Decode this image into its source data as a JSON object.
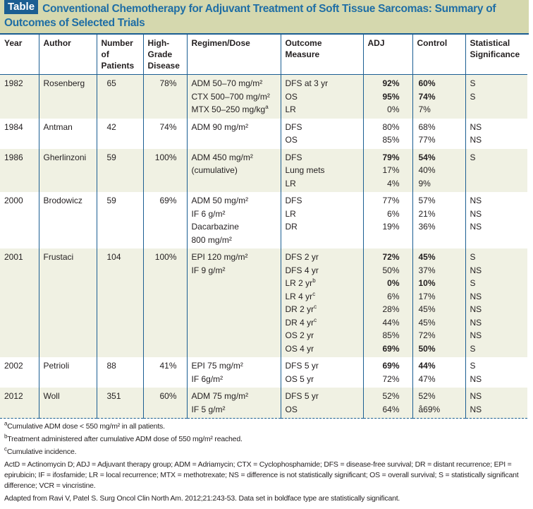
{
  "title": {
    "tag": "Table",
    "text": "Conventional Chemotherapy for Adjuvant Treatment of Soft Tissue Sarcomas: Summary of Outcomes of Selected Trials"
  },
  "columns": [
    "Year",
    "Author",
    "Number of Patients",
    "High-Grade Disease",
    "Regimen/Dose",
    "Outcome Measure",
    "ADJ",
    "Control",
    "Statistical Significance"
  ],
  "colors": {
    "accent": "#1b5e92",
    "title_text": "#1f6ea5",
    "title_band": "#d5d8ae",
    "alt_row": "#f0f1e3"
  },
  "trials": [
    {
      "year": "1982",
      "author": "Rosenberg",
      "n": "65",
      "hg": "78%",
      "regimen": [
        {
          "t": "ADM 50–70 mg/m²"
        },
        {
          "t": "CTX 500–700 mg/m²"
        },
        {
          "t": "MTX 50–250 mg/kg",
          "sup": "a"
        }
      ],
      "outcomes": [
        {
          "m": "DFS at 3 yr",
          "adj": "92%",
          "ab": true,
          "ctrl": "60%",
          "cb": true,
          "sig": "S"
        },
        {
          "m": "OS",
          "adj": "95%",
          "ab": true,
          "ctrl": "74%",
          "cb": true,
          "sig": "S"
        },
        {
          "m": "LR",
          "adj": "0%",
          "ctrl": "7%",
          "sig": ""
        }
      ]
    },
    {
      "year": "1984",
      "author": "Antman",
      "n": "42",
      "hg": "74%",
      "regimen": [
        {
          "t": "ADM 90 mg/m²"
        }
      ],
      "outcomes": [
        {
          "m": "DFS",
          "adj": "80%",
          "ctrl": "68%",
          "sig": "NS"
        },
        {
          "m": "OS",
          "adj": "85%",
          "ctrl": "77%",
          "sig": "NS"
        }
      ]
    },
    {
      "year": "1986",
      "author": "Gherlinzoni",
      "n": "59",
      "hg": "100%",
      "regimen": [
        {
          "t": "ADM 450 mg/m²"
        },
        {
          "t": "(cumulative)"
        }
      ],
      "outcomes": [
        {
          "m": "DFS",
          "adj": "79%",
          "ab": true,
          "ctrl": "54%",
          "cb": true,
          "sig": "S"
        },
        {
          "m": "Lung mets",
          "adj": "17%",
          "ctrl": "40%",
          "sig": ""
        },
        {
          "m": "LR",
          "adj": "4%",
          "ctrl": "9%",
          "sig": ""
        }
      ]
    },
    {
      "year": "2000",
      "author": "Brodowicz",
      "n": "59",
      "hg": "69%",
      "regimen": [
        {
          "t": "ADM 50 mg/m²"
        },
        {
          "t": "IF 6 g/m²"
        },
        {
          "t": "Dacarbazine"
        },
        {
          "t": "800 mg/m²"
        }
      ],
      "outcomes": [
        {
          "m": "DFS",
          "adj": "77%",
          "ctrl": "57%",
          "sig": "NS"
        },
        {
          "m": "LR",
          "adj": "6%",
          "ctrl": "21%",
          "sig": "NS"
        },
        {
          "m": "DR",
          "adj": "19%",
          "ctrl": "36%",
          "sig": "NS"
        }
      ]
    },
    {
      "year": "2001",
      "author": "Frustaci",
      "n": "104",
      "hg": "100%",
      "regimen": [
        {
          "t": "EPI 120 mg/m²"
        },
        {
          "t": "IF 9 g/m²"
        }
      ],
      "outcomes": [
        {
          "m": "DFS 2 yr",
          "adj": "72%",
          "ab": true,
          "ctrl": "45%",
          "cb": true,
          "sig": "S"
        },
        {
          "m": "DFS 4 yr",
          "adj": "50%",
          "ctrl": "37%",
          "sig": "NS"
        },
        {
          "m": "LR 2 yr",
          "sup": "b",
          "adj": "0%",
          "ab": true,
          "ctrl": "10%",
          "cb": true,
          "sig": "S"
        },
        {
          "m": "LR 4 yr",
          "sup": "c",
          "adj": "6%",
          "ctrl": "17%",
          "sig": "NS"
        },
        {
          "m": "DR 2 yr",
          "sup": "c",
          "adj": "28%",
          "ctrl": "45%",
          "sig": "NS"
        },
        {
          "m": "DR 4 yr",
          "sup": "c",
          "adj": "44%",
          "ctrl": "45%",
          "sig": "NS"
        },
        {
          "m": "OS 2 yr",
          "adj": "85%",
          "ctrl": "72%",
          "sig": "NS"
        },
        {
          "m": "OS 4 yr",
          "adj": "69%",
          "ab": true,
          "ctrl": "50%",
          "cb": true,
          "sig": "S"
        }
      ]
    },
    {
      "year": "2002",
      "author": "Petrioli",
      "n": "88",
      "hg": "41%",
      "regimen": [
        {
          "t": "EPI 75 mg/m²"
        },
        {
          "t": "IF 6g/m²"
        }
      ],
      "outcomes": [
        {
          "m": "DFS 5 yr",
          "adj": "69%",
          "ab": true,
          "ctrl": "44%",
          "cb": true,
          "sig": "S"
        },
        {
          "m": "OS 5 yr",
          "adj": "72%",
          "ctrl": "47%",
          "sig": "NS"
        }
      ]
    },
    {
      "year": "2012",
      "author": "Woll",
      "n": "351",
      "hg": "60%",
      "regimen": [
        {
          "t": "ADM 75 mg/m²"
        },
        {
          "t": "IF 5 g/m²"
        }
      ],
      "outcomes": [
        {
          "m": "DFS 5 yr",
          "adj": "52%",
          "ctrl": "52%",
          "sig": "NS"
        },
        {
          "m": "OS",
          "adj": "64%",
          "ctrl": "å69%",
          "sig": "NS"
        }
      ]
    }
  ],
  "footnotes": [
    {
      "sup": "a",
      "text": "Cumulative ADM dose < 550 mg/m² in all patients."
    },
    {
      "sup": "b",
      "text": "Treatment administered after cumulative ADM dose of 550 mg/m² reached."
    },
    {
      "sup": "c",
      "text": "Cumulative incidence."
    }
  ],
  "abbreviations": "ActD = Actinomycin D; ADJ = Adjuvant therapy group; ADM = Adriamycin; CTX = Cyclophosphamide; DFS = disease-free survival; DR = distant recurrence; EPI = epirubicin; IF = ifosfamide; LR = local recurrence; MTX = methotrexate; NS = difference is not statistically significant; OS = overall survival; S = statistically significant difference; VCR = vincristine.",
  "source": "Adapted from Ravi V, Patel S. Surg Oncol Clin North Am. 2012;21:243-53. Data set in boldface type are statistically significant."
}
